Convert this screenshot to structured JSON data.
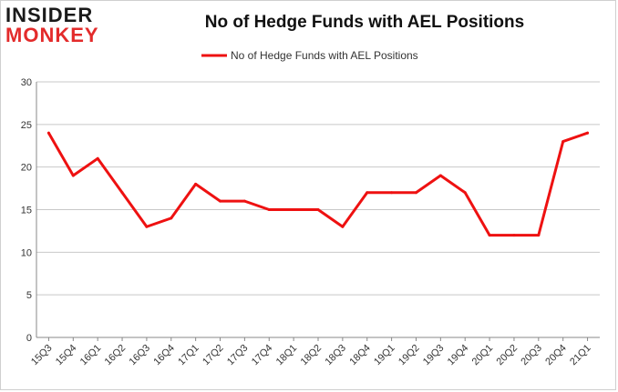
{
  "logo": {
    "line1": "INSIDER",
    "line2": "MONKEY"
  },
  "colors": {
    "series": "#ee1111",
    "grid": "#c8c8c8",
    "axis": "#888888",
    "logo_red": "#e32b2b"
  },
  "chart_data": {
    "type": "line",
    "title": "No of Hedge Funds with AEL Positions",
    "xlabel": "",
    "ylabel": "",
    "ylim": [
      0,
      30
    ],
    "yticks": [
      0,
      5,
      10,
      15,
      20,
      25,
      30
    ],
    "grid": true,
    "legend_position": "top-center",
    "categories": [
      "15Q3",
      "15Q4",
      "16Q1",
      "16Q2",
      "16Q3",
      "16Q4",
      "17Q1",
      "17Q2",
      "17Q3",
      "17Q4",
      "18Q1",
      "18Q2",
      "18Q3",
      "18Q4",
      "19Q1",
      "19Q2",
      "19Q3",
      "19Q4",
      "20Q1",
      "20Q2",
      "20Q3",
      "20Q4",
      "21Q1"
    ],
    "series": [
      {
        "name": "No of Hedge Funds with AEL Positions",
        "values": [
          24,
          19,
          21,
          17,
          13,
          14,
          18,
          16,
          16,
          15,
          15,
          15,
          13,
          17,
          17,
          17,
          19,
          17,
          12,
          12,
          12,
          23,
          24
        ]
      }
    ]
  }
}
